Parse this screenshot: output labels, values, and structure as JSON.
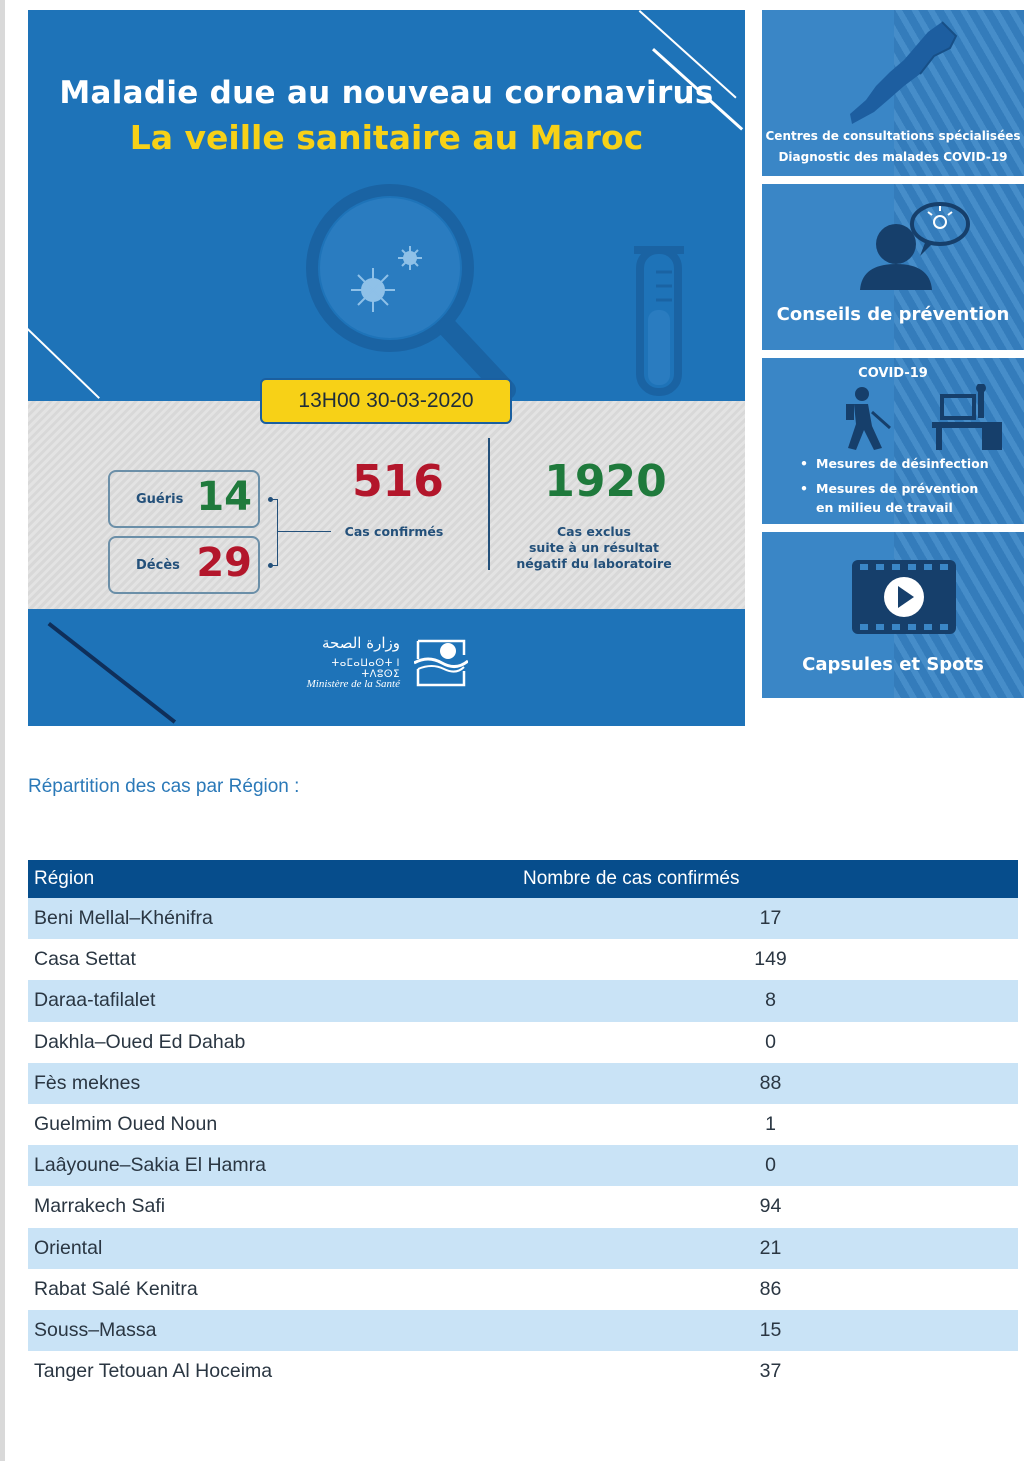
{
  "banner": {
    "title_line1": "Maladie due au nouveau coronavirus",
    "title_line2": "La veille sanitaire au Maroc",
    "date": "13H00  30-03-2020",
    "recovered_label": "Guéris",
    "recovered_value": "14",
    "deaths_label": "Décès",
    "deaths_value": "29",
    "confirmed_value": "516",
    "confirmed_label": "Cas confirmés",
    "excluded_value": "1920",
    "excluded_label_line1": "Cas exclus",
    "excluded_label_line2": "suite à un résultat",
    "excluded_label_line3": "négatif du laboratoire",
    "ministry_arabic": "وزارة الصحة",
    "ministry_tifinagh": "ⵜⴰⵎⴰⵡⴰⵙⵜ ⵏ ⵜⴷⵓⵙⵉ",
    "ministry_french": "Ministère de la Santé"
  },
  "side_cards": {
    "card1_line1": "Centres de consultations spécialisées",
    "card1_line2": "Diagnostic des malades COVID-19",
    "card2_label": "Conseils de prévention",
    "card3_title": "COVID-19",
    "card3_item1": "Mesures de désinfection",
    "card3_item2_line1": "Mesures de prévention",
    "card3_item2_line2": "en milieu de travail",
    "card4_label": "Capsules et Spots"
  },
  "region_section": {
    "heading": "Répartition des cas par Région :",
    "col_region": "Région",
    "col_cases": "Nombre de cas confirmés",
    "rows": [
      {
        "region": "Beni Mellal–Khénifra",
        "cases": "17"
      },
      {
        "region": "Casa Settat",
        "cases": "149"
      },
      {
        "region": "Daraa-tafilalet",
        "cases": "8"
      },
      {
        "region": "Dakhla–Oued Ed Dahab",
        "cases": "0"
      },
      {
        "region": "Fès meknes",
        "cases": "88"
      },
      {
        "region": "Guelmim Oued Noun",
        "cases": "1"
      },
      {
        "region": "Laâyoune–Sakia El Hamra",
        "cases": "0"
      },
      {
        "region": "Marrakech Safi",
        "cases": "94"
      },
      {
        "region": "Oriental",
        "cases": "21"
      },
      {
        "region": "Rabat Salé Kenitra",
        "cases": "86"
      },
      {
        "region": "Souss–Massa",
        "cases": "15"
      },
      {
        "region": "Tanger Tetouan Al Hoceima",
        "cases": "37"
      }
    ]
  },
  "colors": {
    "banner_blue": "#1e73b8",
    "title_yellow": "#f7d117",
    "recovered_green": "#1f7a3c",
    "deaths_red": "#b3162b",
    "table_header": "#064d8c",
    "row_highlight": "#c9e3f6",
    "heading_blue": "#2b79b8"
  }
}
